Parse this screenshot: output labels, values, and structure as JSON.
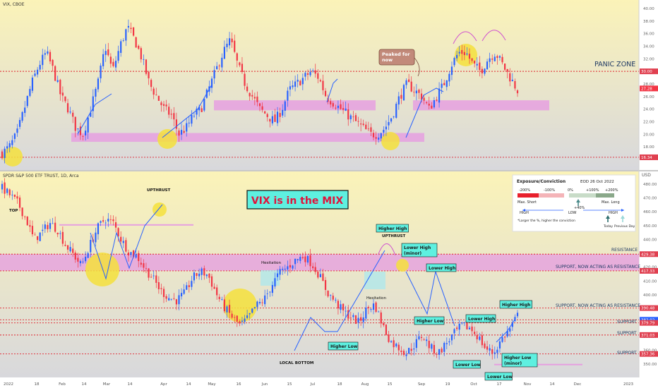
{
  "panels": {
    "vix_title": "VIX, CBOE",
    "spy_title": "SPDR S&P 500 ETF TRUST, 1D, Arca",
    "spy_currency": "USD"
  },
  "banner": {
    "text": "VIX is in the MIX",
    "bg": "#5ef0e0",
    "fg": "#e0143c"
  },
  "colors": {
    "up": "#2962ff",
    "down": "#f23645",
    "zone": "#e6a0e0",
    "dashed": "#e0202c",
    "callout": "#5ef0e0",
    "highlight": "#f5e03c"
  },
  "info_box": {
    "title": "Exposure/Conviction",
    "date": "EOD 26 Oct 2022",
    "scale": [
      "-200%",
      "-100%",
      "0%",
      "+100%",
      "+200%"
    ],
    "max_short": "Max. Short",
    "max_long": "Max. Long",
    "plus40": "+40%",
    "high_left": "HIGH",
    "low": "LOW",
    "high_right": "HIGH",
    "note": "*Larger the %, higher the conviction",
    "today": "Today",
    "prev_day": "Previous Day"
  },
  "annotations": {
    "panic_zone": "PANIC ZONE",
    "peaked_for_now": "Peaked for now",
    "top": "TOP",
    "upthrust1": "UPTHRUST",
    "upthrust2": "UPTHRUST",
    "hesitation1": "Hesitation",
    "hesitation2": "Hesitation",
    "local_bottom": "LOCAL BOTTOM",
    "resistance": "RESISTANCE",
    "support_resistance1": "SUPPORT, NOW ACTING AS RESISTANCE",
    "support_resistance2": "SUPPORT, NOW ACTING AS RESISTANCE",
    "support1": "SUPPORT",
    "support2": "SUPPORT",
    "support3": "SUPPORT",
    "higher_high1": "Higher High",
    "lower_high_minor": "Lower High (minor)",
    "lower_high1": "Lower High",
    "higher_low1": "Higher Low",
    "higher_low2": "Higher Low",
    "lower_high2": "Lower High",
    "higher_high2": "Higher High",
    "lower_low1": "Lower Low",
    "higher_low_minor": "Higher Low (minor)",
    "lower_low2": "Lower Low"
  },
  "chart_data": [
    {
      "type": "candlestick",
      "title": "VIX, CBOE",
      "y_ticks": [
        "40.00",
        "38.00",
        "36.00",
        "34.00",
        "32.00",
        "30.00",
        "28.00",
        "26.00",
        "24.00",
        "22.00",
        "20.00",
        "18.00"
      ],
      "ylim": [
        16.0,
        41.0
      ],
      "price_labels": [
        {
          "value": 30.0,
          "label": "30.00"
        },
        {
          "value": 27.28,
          "label": "27.28"
        },
        {
          "value": 16.34,
          "label": "16.34"
        }
      ],
      "close_path": [
        17,
        18,
        20,
        24,
        28,
        31,
        33,
        30,
        26,
        24,
        21,
        20,
        24,
        28,
        34,
        30,
        34,
        37,
        35,
        32,
        28,
        26,
        24,
        23,
        20,
        21,
        23,
        24,
        27,
        30,
        33,
        35,
        31,
        28,
        26,
        24,
        23,
        22,
        24,
        27,
        28,
        29,
        30,
        29,
        26,
        25,
        24,
        23,
        22,
        21,
        20,
        20,
        21,
        23,
        26,
        28,
        27,
        26,
        24,
        26,
        28,
        31,
        33,
        33,
        31,
        30,
        32,
        33,
        31,
        29,
        27
      ]
    },
    {
      "type": "candlestick",
      "title": "SPDR S&P 500 ETF TRUST, 1D, Arca",
      "x_ticks": [
        "2022",
        "18",
        "Feb",
        "14",
        "Mar",
        "14",
        "Apr",
        "14",
        "May",
        "16",
        "Jun",
        "15",
        "Jul",
        "18",
        "Aug",
        "15",
        "Sep",
        "19",
        "Oct",
        "17",
        "Nov",
        "14",
        "Dec",
        "2023"
      ],
      "y_ticks": [
        "480.00",
        "470.00",
        "460.00",
        "450.00",
        "440.00",
        "430.00",
        "420.00",
        "410.00",
        "400.00",
        "390.00",
        "380.00",
        "370.00",
        "360.00",
        "350.00"
      ],
      "ylim": [
        345.0,
        485.0
      ],
      "price_labels": [
        {
          "value": 429.38,
          "label": "429.38"
        },
        {
          "value": 417.33,
          "label": "417.33"
        },
        {
          "value": 390.48,
          "label": "390.48"
        },
        {
          "value": 382.02,
          "label": "382.02"
        },
        {
          "value": 379.79,
          "label": "379.79"
        },
        {
          "value": 371.03,
          "label": "371.03"
        },
        {
          "value": 357.36,
          "label": "357.36"
        }
      ],
      "close_path": [
        477,
        472,
        466,
        455,
        440,
        445,
        452,
        447,
        436,
        429,
        421,
        435,
        448,
        455,
        452,
        440,
        431,
        428,
        419,
        412,
        403,
        398,
        396,
        401,
        412,
        417,
        414,
        401,
        391,
        384,
        378,
        383,
        392,
        396,
        407,
        416,
        420,
        425,
        428,
        423,
        414,
        402,
        395,
        388,
        384,
        380,
        390,
        393,
        378,
        366,
        362,
        358,
        364,
        371,
        362,
        358,
        365,
        372,
        378,
        376,
        370,
        361,
        358,
        368,
        375,
        385
      ]
    }
  ]
}
